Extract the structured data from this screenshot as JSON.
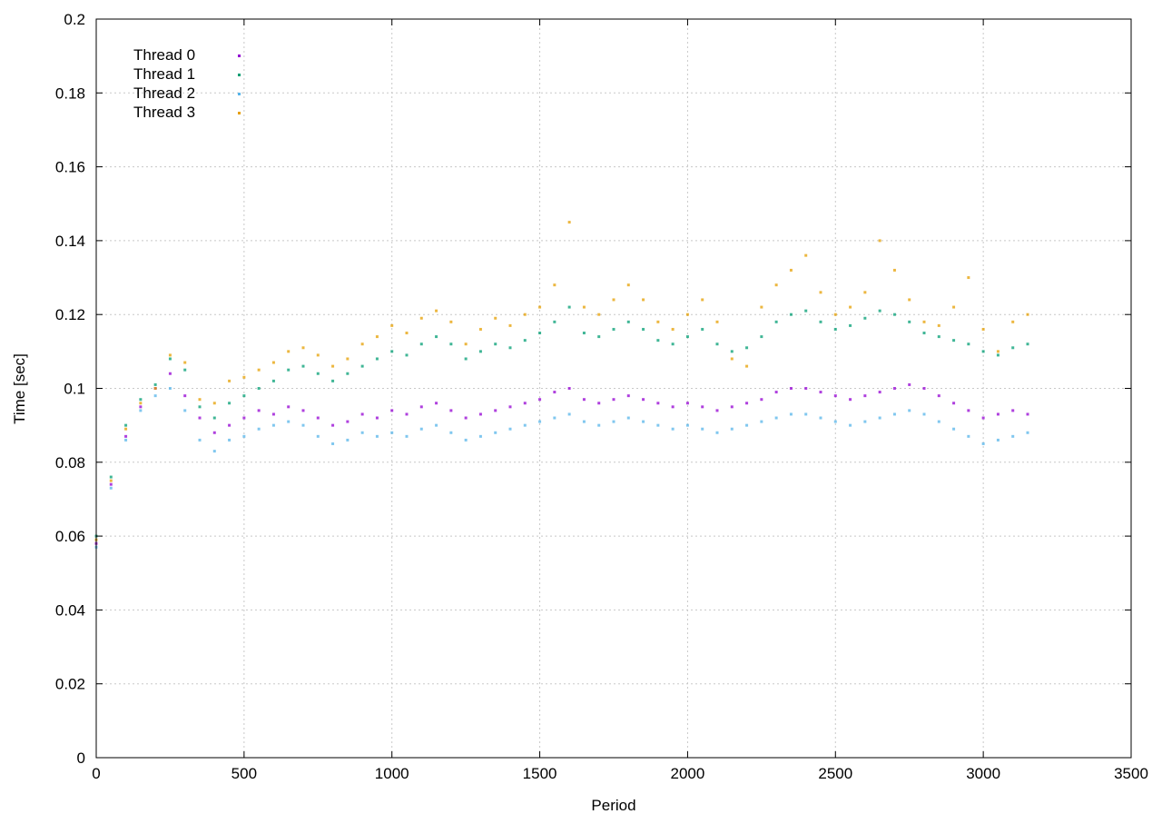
{
  "chart_data": {
    "type": "scatter",
    "title": "",
    "xlabel": "Period",
    "ylabel": "Time [sec]",
    "xlim": [
      0,
      3500
    ],
    "ylim": [
      0,
      0.2
    ],
    "xticks": [
      0,
      500,
      1000,
      1500,
      2000,
      2500,
      3000,
      3500
    ],
    "yticks": [
      0,
      0.02,
      0.04,
      0.06,
      0.08,
      0.1,
      0.12,
      0.14,
      0.16,
      0.18,
      0.2
    ],
    "xtick_labels": [
      "0",
      "500",
      "1000",
      "1500",
      "2000",
      "2500",
      "3000",
      "3500"
    ],
    "ytick_labels": [
      "0",
      "0.02",
      "0.04",
      "0.06",
      "0.08",
      "0.1",
      "0.12",
      "0.14",
      "0.16",
      "0.18",
      "0.2"
    ],
    "grid": true,
    "legend": "top-left",
    "series": [
      {
        "name": "Thread 0",
        "color": "#9400d3",
        "x": [
          0,
          50,
          100,
          150,
          200,
          250,
          300,
          350,
          400,
          450,
          500,
          550,
          600,
          650,
          700,
          750,
          800,
          850,
          900,
          950,
          1000,
          1050,
          1100,
          1150,
          1200,
          1250,
          1300,
          1350,
          1400,
          1450,
          1500,
          1550,
          1600,
          1650,
          1700,
          1750,
          1800,
          1850,
          1900,
          1950,
          2000,
          2050,
          2100,
          2150,
          2200,
          2250,
          2300,
          2350,
          2400,
          2450,
          2500,
          2550,
          2600,
          2650,
          2700,
          2750,
          2800,
          2850,
          2900,
          2950,
          3000,
          3050,
          3100,
          3150
        ],
        "y": [
          0.058,
          0.074,
          0.087,
          0.095,
          0.1,
          0.104,
          0.098,
          0.092,
          0.088,
          0.09,
          0.092,
          0.094,
          0.093,
          0.095,
          0.094,
          0.092,
          0.09,
          0.091,
          0.093,
          0.092,
          0.094,
          0.093,
          0.095,
          0.096,
          0.094,
          0.092,
          0.093,
          0.094,
          0.095,
          0.096,
          0.097,
          0.099,
          0.1,
          0.097,
          0.096,
          0.097,
          0.098,
          0.097,
          0.096,
          0.095,
          0.096,
          0.095,
          0.094,
          0.095,
          0.096,
          0.097,
          0.099,
          0.1,
          0.1,
          0.099,
          0.098,
          0.097,
          0.098,
          0.099,
          0.1,
          0.101,
          0.1,
          0.098,
          0.096,
          0.094,
          0.092,
          0.093,
          0.094,
          0.093
        ]
      },
      {
        "name": "Thread 1",
        "color": "#009e73",
        "x": [
          0,
          50,
          100,
          150,
          200,
          250,
          300,
          350,
          400,
          450,
          500,
          550,
          600,
          650,
          700,
          750,
          800,
          850,
          900,
          950,
          1000,
          1050,
          1100,
          1150,
          1200,
          1250,
          1300,
          1350,
          1400,
          1450,
          1500,
          1550,
          1600,
          1650,
          1700,
          1750,
          1800,
          1850,
          1900,
          1950,
          2000,
          2050,
          2100,
          2150,
          2200,
          2250,
          2300,
          2350,
          2400,
          2450,
          2500,
          2550,
          2600,
          2650,
          2700,
          2750,
          2800,
          2850,
          2900,
          2950,
          3000,
          3050,
          3100,
          3150
        ],
        "y": [
          0.06,
          0.076,
          0.09,
          0.097,
          0.101,
          0.108,
          0.105,
          0.095,
          0.092,
          0.096,
          0.098,
          0.1,
          0.102,
          0.105,
          0.106,
          0.104,
          0.102,
          0.104,
          0.106,
          0.108,
          0.11,
          0.109,
          0.112,
          0.114,
          0.112,
          0.108,
          0.11,
          0.112,
          0.111,
          0.113,
          0.115,
          0.118,
          0.122,
          0.115,
          0.114,
          0.116,
          0.118,
          0.116,
          0.113,
          0.112,
          0.114,
          0.116,
          0.112,
          0.11,
          0.111,
          0.114,
          0.118,
          0.12,
          0.121,
          0.118,
          0.116,
          0.117,
          0.119,
          0.121,
          0.12,
          0.118,
          0.115,
          0.114,
          0.113,
          0.112,
          0.11,
          0.109,
          0.111,
          0.112
        ]
      },
      {
        "name": "Thread 2",
        "color": "#56b4e9",
        "x": [
          0,
          50,
          100,
          150,
          200,
          250,
          300,
          350,
          400,
          450,
          500,
          550,
          600,
          650,
          700,
          750,
          800,
          850,
          900,
          950,
          1000,
          1050,
          1100,
          1150,
          1200,
          1250,
          1300,
          1350,
          1400,
          1450,
          1500,
          1550,
          1600,
          1650,
          1700,
          1750,
          1800,
          1850,
          1900,
          1950,
          2000,
          2050,
          2100,
          2150,
          2200,
          2250,
          2300,
          2350,
          2400,
          2450,
          2500,
          2550,
          2600,
          2650,
          2700,
          2750,
          2800,
          2850,
          2900,
          2950,
          3000,
          3050,
          3100,
          3150
        ],
        "y": [
          0.057,
          0.073,
          0.086,
          0.094,
          0.098,
          0.1,
          0.094,
          0.086,
          0.083,
          0.086,
          0.087,
          0.089,
          0.09,
          0.091,
          0.09,
          0.087,
          0.085,
          0.086,
          0.088,
          0.087,
          0.088,
          0.087,
          0.089,
          0.09,
          0.088,
          0.086,
          0.087,
          0.088,
          0.089,
          0.09,
          0.091,
          0.092,
          0.093,
          0.091,
          0.09,
          0.091,
          0.092,
          0.091,
          0.09,
          0.089,
          0.09,
          0.089,
          0.088,
          0.089,
          0.09,
          0.091,
          0.092,
          0.093,
          0.093,
          0.092,
          0.091,
          0.09,
          0.091,
          0.092,
          0.093,
          0.094,
          0.093,
          0.091,
          0.089,
          0.087,
          0.085,
          0.086,
          0.087,
          0.088
        ]
      },
      {
        "name": "Thread 3",
        "color": "#e69f00",
        "x": [
          0,
          50,
          100,
          150,
          200,
          250,
          300,
          350,
          400,
          450,
          500,
          550,
          600,
          650,
          700,
          750,
          800,
          850,
          900,
          950,
          1000,
          1050,
          1100,
          1150,
          1200,
          1250,
          1300,
          1350,
          1400,
          1450,
          1500,
          1550,
          1600,
          1650,
          1700,
          1750,
          1800,
          1850,
          1900,
          1950,
          2000,
          2050,
          2100,
          2150,
          2200,
          2250,
          2300,
          2350,
          2400,
          2450,
          2500,
          2550,
          2600,
          2650,
          2700,
          2750,
          2800,
          2850,
          2900,
          2950,
          3000,
          3050,
          3100,
          3150
        ],
        "y": [
          0.059,
          0.075,
          0.089,
          0.096,
          0.1,
          0.109,
          0.107,
          0.097,
          0.096,
          0.102,
          0.103,
          0.105,
          0.107,
          0.11,
          0.111,
          0.109,
          0.106,
          0.108,
          0.112,
          0.114,
          0.117,
          0.115,
          0.119,
          0.121,
          0.118,
          0.112,
          0.116,
          0.119,
          0.117,
          0.12,
          0.122,
          0.128,
          0.145,
          0.122,
          0.12,
          0.124,
          0.128,
          0.124,
          0.118,
          0.116,
          0.12,
          0.124,
          0.118,
          0.108,
          0.106,
          0.122,
          0.128,
          0.132,
          0.136,
          0.126,
          0.12,
          0.122,
          0.126,
          0.14,
          0.132,
          0.124,
          0.118,
          0.117,
          0.122,
          0.13,
          0.116,
          0.11,
          0.118,
          0.12
        ]
      }
    ]
  }
}
